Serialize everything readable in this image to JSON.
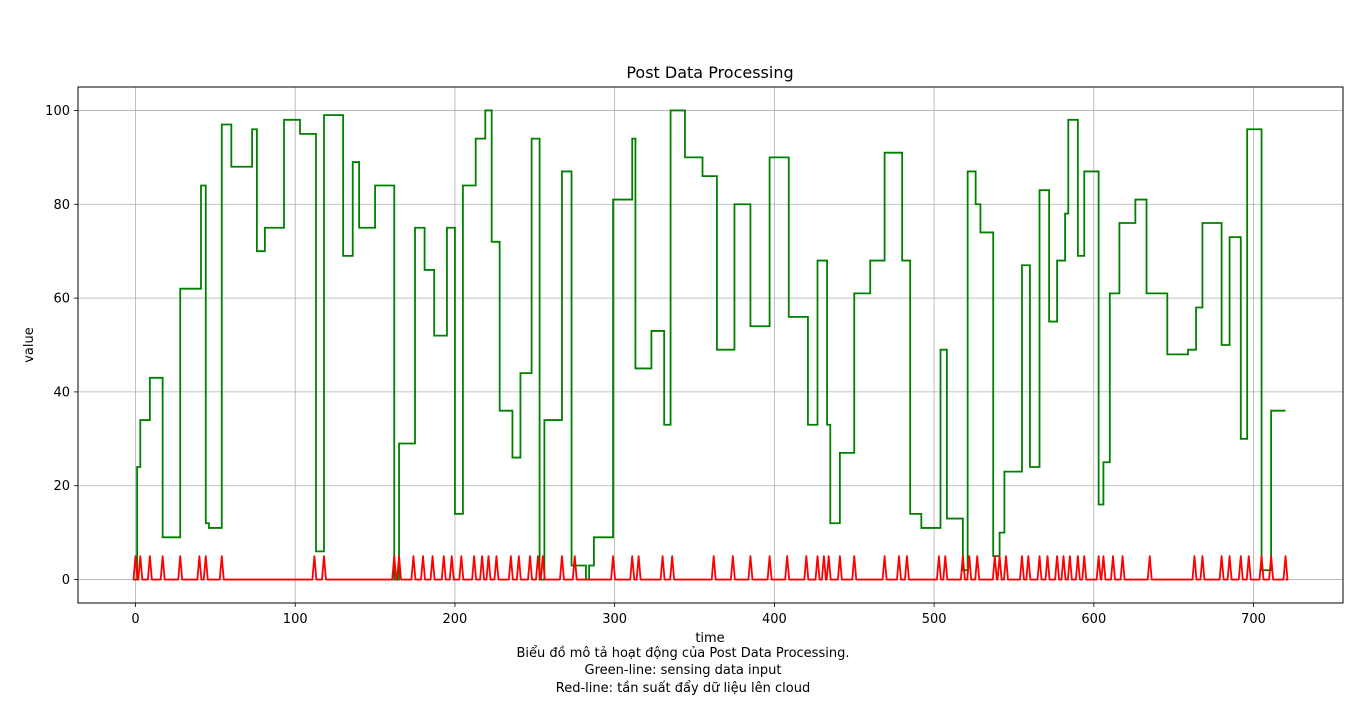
{
  "chart_data": {
    "type": "line",
    "title": "Post Data Processing",
    "xlabel": "time",
    "ylabel": "value",
    "xlim": [
      -36,
      756
    ],
    "ylim": [
      -5,
      105
    ],
    "xticks": [
      0,
      100,
      200,
      300,
      400,
      500,
      600,
      700
    ],
    "yticks": [
      0,
      20,
      40,
      60,
      80,
      100
    ],
    "grid": true,
    "series": [
      {
        "name": "sensing data input",
        "color": "#008000",
        "step": true,
        "points": [
          [
            0,
            0
          ],
          [
            1,
            24
          ],
          [
            3,
            34
          ],
          [
            9,
            43
          ],
          [
            17,
            9
          ],
          [
            28,
            62
          ],
          [
            41,
            84
          ],
          [
            44,
            12
          ],
          [
            46,
            11
          ],
          [
            54,
            97
          ],
          [
            60,
            88
          ],
          [
            73,
            96
          ],
          [
            76,
            70
          ],
          [
            81,
            75
          ],
          [
            93,
            98
          ],
          [
            103,
            95
          ],
          [
            113,
            6
          ],
          [
            118,
            99
          ],
          [
            130,
            69
          ],
          [
            136,
            89
          ],
          [
            140,
            75
          ],
          [
            150,
            84
          ],
          [
            162,
            0
          ],
          [
            165,
            29
          ],
          [
            175,
            75
          ],
          [
            181,
            66
          ],
          [
            187,
            52
          ],
          [
            195,
            75
          ],
          [
            200,
            14
          ],
          [
            205,
            84
          ],
          [
            213,
            94
          ],
          [
            219,
            100
          ],
          [
            223,
            72
          ],
          [
            228,
            36
          ],
          [
            236,
            26
          ],
          [
            241,
            44
          ],
          [
            248,
            94
          ],
          [
            253,
            0
          ],
          [
            256,
            34
          ],
          [
            267,
            87
          ],
          [
            273,
            3
          ],
          [
            282,
            0
          ],
          [
            284,
            3
          ],
          [
            287,
            9
          ],
          [
            299,
            81
          ],
          [
            311,
            94
          ],
          [
            313,
            45
          ],
          [
            323,
            53
          ],
          [
            331,
            33
          ],
          [
            335,
            100
          ],
          [
            344,
            90
          ],
          [
            355,
            86
          ],
          [
            364,
            49
          ],
          [
            375,
            80
          ],
          [
            385,
            54
          ],
          [
            397,
            90
          ],
          [
            409,
            56
          ],
          [
            421,
            33
          ],
          [
            427,
            68
          ],
          [
            433,
            33
          ],
          [
            435,
            12
          ],
          [
            441,
            27
          ],
          [
            450,
            61
          ],
          [
            460,
            68
          ],
          [
            469,
            91
          ],
          [
            480,
            68
          ],
          [
            485,
            14
          ],
          [
            492,
            11
          ],
          [
            504,
            49
          ],
          [
            508,
            13
          ],
          [
            518,
            2
          ],
          [
            521,
            87
          ],
          [
            526,
            80
          ],
          [
            529,
            74
          ],
          [
            537,
            5
          ],
          [
            541,
            10
          ],
          [
            544,
            23
          ],
          [
            555,
            67
          ],
          [
            560,
            24
          ],
          [
            566,
            83
          ],
          [
            572,
            55
          ],
          [
            577,
            68
          ],
          [
            582,
            78
          ],
          [
            584,
            98
          ],
          [
            590,
            69
          ],
          [
            594,
            87
          ],
          [
            603,
            16
          ],
          [
            606,
            25
          ],
          [
            610,
            61
          ],
          [
            616,
            76
          ],
          [
            626,
            81
          ],
          [
            633,
            61
          ],
          [
            646,
            48
          ],
          [
            659,
            49
          ],
          [
            664,
            58
          ],
          [
            668,
            76
          ],
          [
            680,
            50
          ],
          [
            685,
            73
          ],
          [
            692,
            30
          ],
          [
            696,
            96
          ],
          [
            705,
            2
          ],
          [
            711,
            36
          ],
          [
            720,
            36
          ]
        ]
      },
      {
        "name": "tần suất đẩy dữ liệu lên cloud",
        "color": "#ff0000",
        "spikes": [
          0,
          3,
          9,
          17,
          28,
          40,
          44,
          54,
          112,
          118,
          162,
          165,
          174,
          180,
          186,
          193,
          198,
          204,
          212,
          217,
          221,
          226,
          235,
          240,
          247,
          252,
          255,
          267,
          275,
          299,
          311,
          315,
          330,
          336,
          362,
          374,
          385,
          397,
          408,
          420,
          427,
          431,
          434,
          441,
          450,
          469,
          478,
          483,
          503,
          507,
          518,
          522,
          527,
          538,
          541,
          545,
          555,
          559,
          566,
          571,
          577,
          581,
          585,
          590,
          594,
          603,
          606,
          612,
          618,
          635,
          663,
          668,
          680,
          685,
          692,
          697,
          705,
          711,
          720
        ],
        "spike_height": 5
      }
    ]
  },
  "caption": {
    "line1": "Biểu đồ mô tả hoạt động của Post Data Processing.",
    "line2": "Green-line: sensing data input",
    "line3": "Red-line: tần suất đẩy dữ liệu lên cloud"
  }
}
